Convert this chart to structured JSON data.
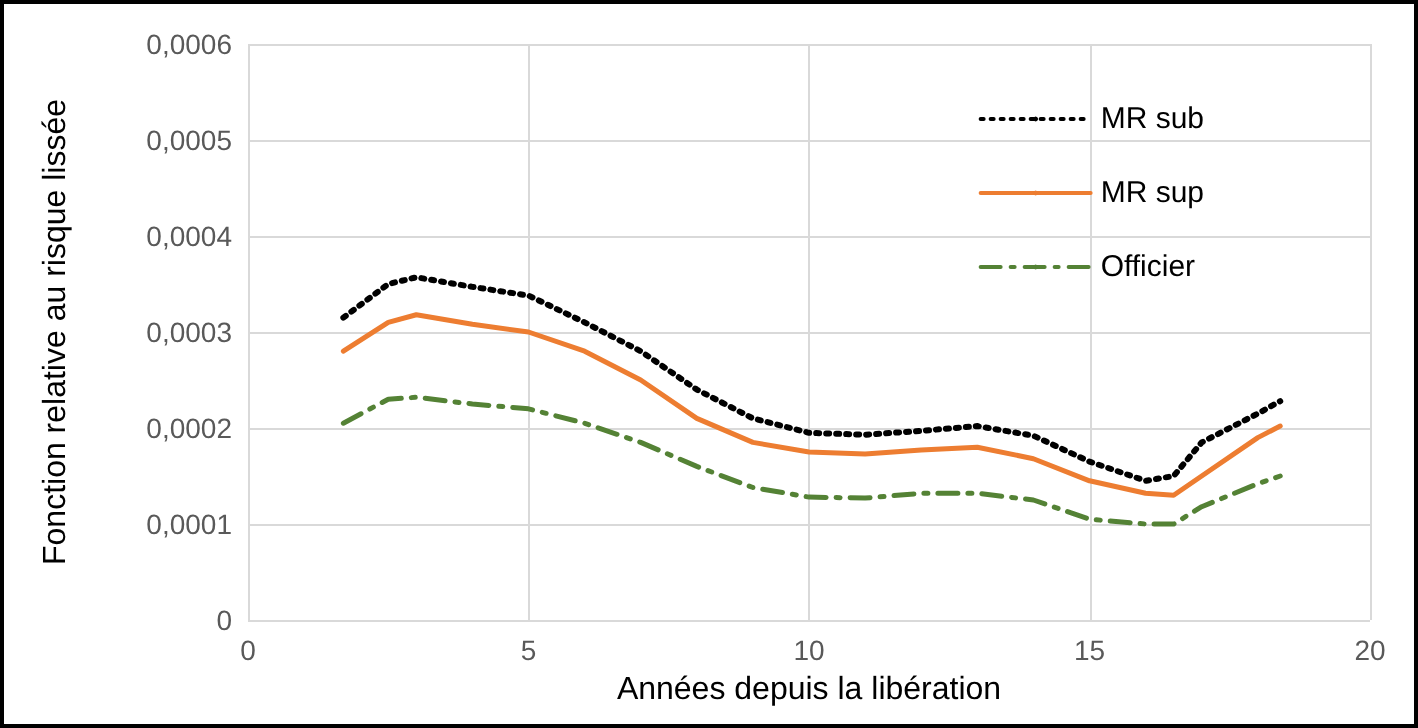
{
  "chart_data": {
    "type": "line",
    "xlabel": "Années depuis la libération",
    "ylabel": "Fonction relative au risque lissée",
    "x": [
      1.7,
      2.5,
      3,
      4,
      5,
      6,
      7,
      8,
      9,
      10,
      11,
      12,
      13,
      14,
      15,
      16,
      16.5,
      17,
      18,
      18.4
    ],
    "series": [
      {
        "name": "MR sub",
        "color": "#000000",
        "line_style": "dotted",
        "values": [
          0.000315,
          0.00035,
          0.000357,
          0.000347,
          0.000338,
          0.00031,
          0.00028,
          0.00024,
          0.00021,
          0.000195,
          0.000193,
          0.000197,
          0.000202,
          0.000192,
          0.000165,
          0.000145,
          0.00015,
          0.000185,
          0.000215,
          0.000228
        ]
      },
      {
        "name": "MR sup",
        "color": "#ed7d31",
        "line_style": "solid",
        "values": [
          0.00028,
          0.00031,
          0.000318,
          0.000308,
          0.0003,
          0.00028,
          0.00025,
          0.00021,
          0.000185,
          0.000175,
          0.000173,
          0.000177,
          0.00018,
          0.000168,
          0.000145,
          0.000132,
          0.00013,
          0.00015,
          0.00019,
          0.000202
        ]
      },
      {
        "name": "Officier",
        "color": "#548235",
        "line_style": "dashdot",
        "values": [
          0.000205,
          0.00023,
          0.000232,
          0.000225,
          0.00022,
          0.000205,
          0.000185,
          0.00016,
          0.000138,
          0.000128,
          0.000127,
          0.000132,
          0.000132,
          0.000125,
          0.000105,
          0.0001,
          0.0001,
          0.000118,
          0.000142,
          0.00015
        ]
      }
    ],
    "xlim": [
      0,
      20
    ],
    "xticks": [
      0,
      5,
      10,
      15,
      20
    ],
    "ylim": [
      0,
      0.0006
    ],
    "yticks": [
      0,
      {
        "value": 0.0001,
        "label": "0,0001"
      },
      {
        "value": 0.0002,
        "label": "0,0002"
      },
      {
        "value": 0.0003,
        "label": "0,0003"
      },
      {
        "value": 0.0004,
        "label": "0,0004"
      },
      {
        "value": 0.0005,
        "label": "0,0005"
      },
      {
        "value": 0.0006,
        "label": "0,0006"
      }
    ],
    "grid": true,
    "legend": "top right",
    "marker": "none"
  }
}
